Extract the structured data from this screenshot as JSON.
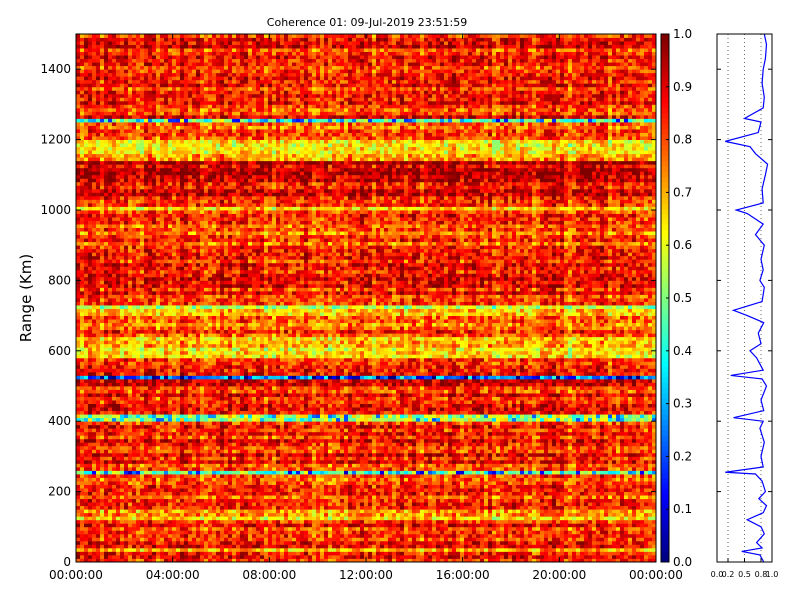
{
  "chart_data": [
    {
      "type": "heatmap",
      "title": "Coherence 01: 09-Jul-2019 23:51:59",
      "ylabel": "Range (Km)",
      "xlabel": "",
      "x_ticks": [
        "00:00:00",
        "04:00:00",
        "08:00:00",
        "12:00:00",
        "16:00:00",
        "20:00:00",
        "00:00:00"
      ],
      "y_ticks": [
        0,
        200,
        400,
        600,
        800,
        1000,
        1200,
        1400
      ],
      "ylim": [
        0,
        1500
      ],
      "xlim_hours": [
        0,
        24
      ],
      "colormap": "jet",
      "colorbar": {
        "range": [
          0.0,
          1.0
        ],
        "ticks": [
          "0.0",
          "0.1",
          "0.2",
          "0.3",
          "0.4",
          "0.5",
          "0.6",
          "0.7",
          "0.8",
          "0.9",
          "1.0"
        ]
      },
      "range_profile_km": [
        {
          "range": [
            0,
            30
          ],
          "mean": 0.82
        },
        {
          "range": [
            30,
            45
          ],
          "mean": 0.7
        },
        {
          "range": [
            45,
            120
          ],
          "mean": 0.84
        },
        {
          "range": [
            120,
            150
          ],
          "mean": 0.72
        },
        {
          "range": [
            150,
            180
          ],
          "mean": 0.9
        },
        {
          "range": [
            180,
            250
          ],
          "mean": 0.82
        },
        {
          "range": [
            250,
            260
          ],
          "mean": 0.4
        },
        {
          "range": [
            260,
            400
          ],
          "mean": 0.84
        },
        {
          "range": [
            400,
            420
          ],
          "mean": 0.55
        },
        {
          "range": [
            420,
            500
          ],
          "mean": 0.86
        },
        {
          "range": [
            500,
            525
          ],
          "mean": 0.92
        },
        {
          "range": [
            525,
            535
          ],
          "mean": 0.3
        },
        {
          "range": [
            535,
            580
          ],
          "mean": 0.84
        },
        {
          "range": [
            580,
            640
          ],
          "mean": 0.65
        },
        {
          "range": [
            640,
            700
          ],
          "mean": 0.8
        },
        {
          "range": [
            700,
            730
          ],
          "mean": 0.62
        },
        {
          "range": [
            730,
            900
          ],
          "mean": 0.84
        },
        {
          "range": [
            900,
            1000
          ],
          "mean": 0.8
        },
        {
          "range": [
            1000,
            1010
          ],
          "mean": 0.6
        },
        {
          "range": [
            1010,
            1100
          ],
          "mean": 0.88
        },
        {
          "range": [
            1100,
            1140
          ],
          "mean": 0.93
        },
        {
          "range": [
            1140,
            1200
          ],
          "mean": 0.68
        },
        {
          "range": [
            1200,
            1250
          ],
          "mean": 0.82
        },
        {
          "range": [
            1250,
            1265
          ],
          "mean": 0.45
        },
        {
          "range": [
            1265,
            1500
          ],
          "mean": 0.85
        }
      ]
    },
    {
      "type": "line",
      "title": "",
      "xlabel": "",
      "ylabel": "",
      "x_ticks": [
        "0.0",
        "0.2",
        "0.5",
        "0.8",
        "1.0"
      ],
      "xlim": [
        0.0,
        1.0
      ],
      "ylim": [
        0,
        1500
      ],
      "series": [
        {
          "color": "#0000ff",
          "points_range_km": [
            0,
            20,
            30,
            40,
            55,
            80,
            100,
            120,
            140,
            160,
            180,
            200,
            230,
            250,
            255,
            270,
            300,
            340,
            380,
            400,
            410,
            430,
            460,
            500,
            520,
            530,
            545,
            580,
            600,
            620,
            650,
            680,
            700,
            715,
            740,
            780,
            800,
            830,
            860,
            900,
            930,
            960,
            990,
            1000,
            1020,
            1060,
            1100,
            1130,
            1160,
            1180,
            1195,
            1220,
            1250,
            1260,
            1290,
            1320,
            1360,
            1400,
            1430,
            1470,
            1500
          ],
          "values": [
            0.85,
            0.78,
            0.45,
            0.82,
            0.72,
            0.86,
            0.8,
            0.55,
            0.84,
            0.9,
            0.76,
            0.88,
            0.82,
            0.7,
            0.15,
            0.84,
            0.8,
            0.86,
            0.78,
            0.84,
            0.3,
            0.85,
            0.8,
            0.9,
            0.82,
            0.25,
            0.84,
            0.72,
            0.6,
            0.8,
            0.75,
            0.85,
            0.55,
            0.3,
            0.82,
            0.86,
            0.78,
            0.84,
            0.8,
            0.86,
            0.7,
            0.84,
            0.55,
            0.35,
            0.84,
            0.82,
            0.88,
            0.92,
            0.7,
            0.6,
            0.15,
            0.75,
            0.8,
            0.5,
            0.84,
            0.86,
            0.82,
            0.84,
            0.88,
            0.9,
            0.86
          ]
        }
      ],
      "grid": "vertical-dotted"
    }
  ]
}
